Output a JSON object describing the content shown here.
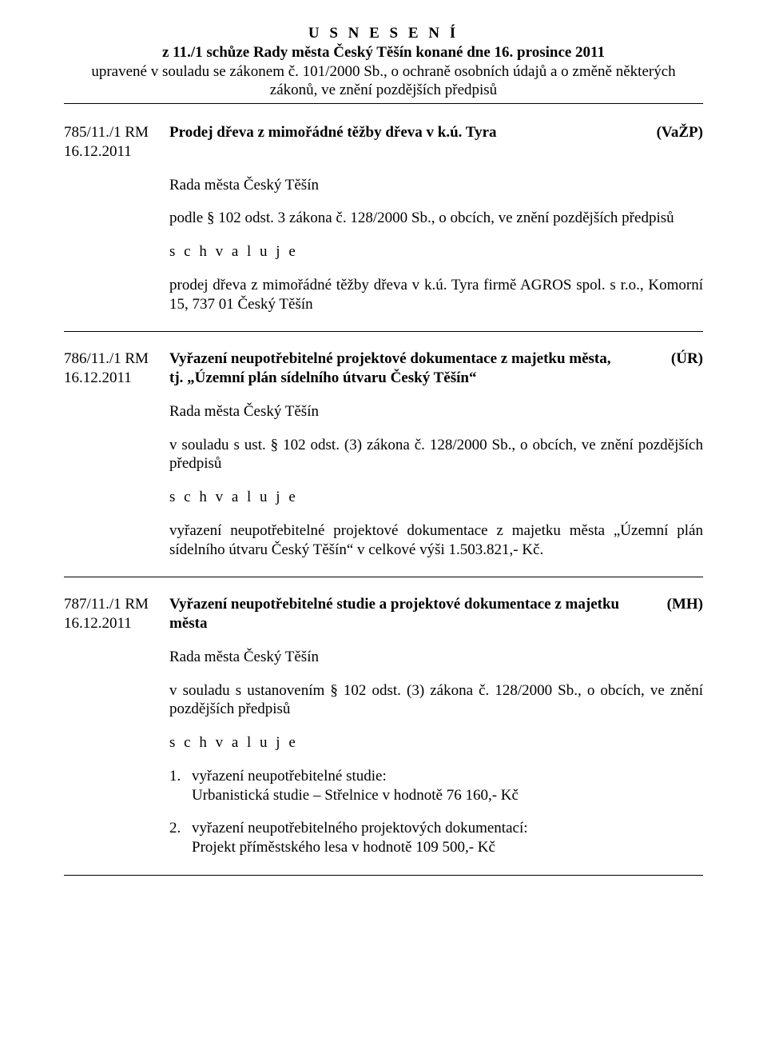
{
  "header": {
    "title_spaced": "U S N E S E N Í",
    "line2": "z 11./1 schůze Rady města Český Těšín konané dne 16. prosince 2011",
    "line3": "upravené v souladu se zákonem č. 101/2000 Sb., o ochraně osobních údajů a o změně některých",
    "line4": "zákonů, ve znění pozdějších předpisů"
  },
  "res1": {
    "id_line1": "785/11./1 RM",
    "id_line2": "16.12.2011",
    "title": "Prodej dřeva z mimořádné těžby dřeva v k.ú. Tyra",
    "tag": "(VaŽP)",
    "rada": "Rada města Český Těšín",
    "p1": "podle § 102 odst. 3 zákona č. 128/2000 Sb., o obcích, ve znění pozdějších předpisů",
    "schvaluje": "s c h v a l u j e",
    "p2": "prodej dřeva z mimořádné těžby dřeva v k.ú. Tyra firmě AGROS spol. s r.o., Komorní 15, 737 01 Český Těšín"
  },
  "res2": {
    "id_line1": "786/11./1 RM",
    "id_line2": "16.12.2011",
    "title_l1": "Vyřazení neupotřebitelné projektové dokumentace z majetku města,",
    "title_l2": "tj. „Územní plán sídelního útvaru Český Těšín“",
    "tag": "(ÚR)",
    "rada": "Rada města Český Těšín",
    "p1": "v souladu s ust. § 102 odst. (3) zákona č. 128/2000 Sb., o obcích, ve znění pozdějších předpisů",
    "schvaluje": "s c h v a l u j e",
    "p2": "vyřazení neupotřebitelné projektové dokumentace z majetku města „Územní plán sídelního útvaru Český Těšín“ v celkové výši 1.503.821,- Kč."
  },
  "res3": {
    "id_line1": "787/11./1 RM",
    "id_line2": "16.12.2011",
    "title_l1": "Vyřazení neupotřebitelné studie a projektové dokumentace z majetku",
    "title_l2": "města",
    "tag": "(MH)",
    "rada": "Rada města Český Těšín",
    "p1": "v souladu s ustanovením § 102 odst. (3) zákona č. 128/2000 Sb., o obcích, ve znění pozdějších předpisů",
    "schvaluje": "s c h v a l u j e",
    "item1_num": "1.",
    "item1_l1": "vyřazení neupotřebitelné studie:",
    "item1_l2": "Urbanistická studie – Střelnice v hodnotě 76 160,- Kč",
    "item2_num": "2.",
    "item2_l1": "vyřazení neupotřebitelného projektových dokumentací:",
    "item2_l2": "Projekt příměstského lesa v hodnotě 109 500,- Kč"
  }
}
